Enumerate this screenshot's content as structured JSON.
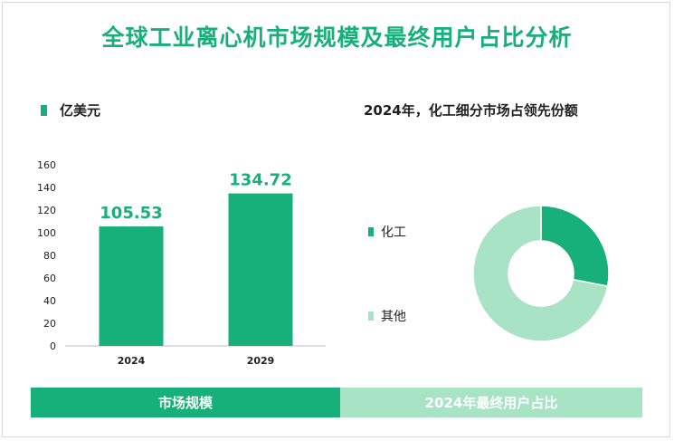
{
  "title": "全球工业离心机市场规模及最终用户占比分析",
  "colors": {
    "accent": "#17b07a",
    "light": "#a8e3c6"
  },
  "chart_data": [
    {
      "type": "bar",
      "unit_label": "亿美元",
      "categories": [
        "2024",
        "2029"
      ],
      "values": [
        105.53,
        134.72
      ],
      "value_labels": [
        "105.53",
        "134.72"
      ],
      "ylim": [
        0,
        160
      ],
      "yticks": [
        "0",
        "20",
        "40",
        "60",
        "80",
        "100",
        "120",
        "140",
        "160"
      ],
      "footer": "市场规模"
    },
    {
      "type": "pie",
      "title": "2024年，化工细分市场占领先份额",
      "labels": [
        "化工",
        "其他"
      ],
      "values": [
        28,
        72
      ],
      "footer": "2024年最终用户占比"
    }
  ]
}
